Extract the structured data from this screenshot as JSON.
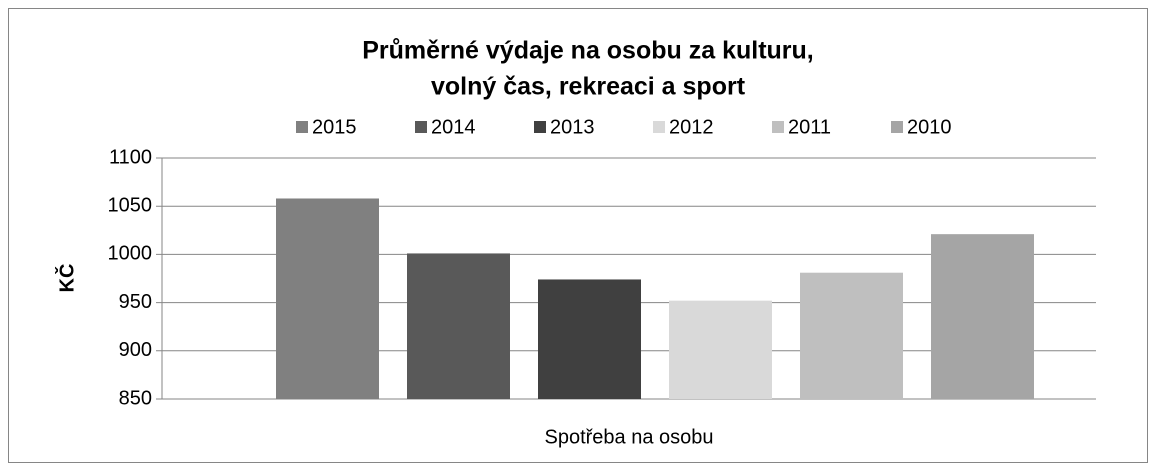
{
  "chart_data": {
    "type": "bar",
    "title": [
      "Průměrné výdaje na osobu za kulturu,",
      "volný čas, rekreaci a sport"
    ],
    "y_label": "KČ",
    "categories": [
      "Spotřeba na osobu"
    ],
    "series": [
      {
        "name": "2015",
        "color": "#808080",
        "values": [
          1058
        ]
      },
      {
        "name": "2014",
        "color": "#595959",
        "values": [
          1001
        ]
      },
      {
        "name": "2013",
        "color": "#404040",
        "values": [
          974
        ]
      },
      {
        "name": "2012",
        "color": "#d9d9d9",
        "values": [
          952
        ]
      },
      {
        "name": "2011",
        "color": "#bfbfbf",
        "values": [
          981
        ]
      },
      {
        "name": "2010",
        "color": "#a5a5a5",
        "values": [
          1021
        ]
      }
    ],
    "ylim": [
      850,
      1100
    ],
    "yticks": [
      850,
      900,
      950,
      1000,
      1050,
      1100
    ],
    "grid": true,
    "legend": "top"
  }
}
